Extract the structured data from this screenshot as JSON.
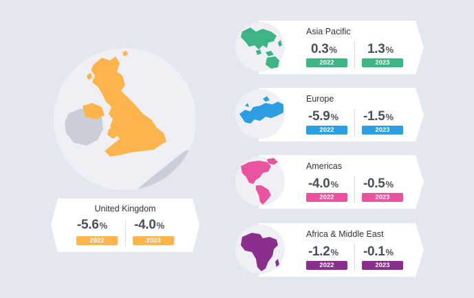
{
  "uk": {
    "title": "United Kingdom",
    "val_2022": "-5.6",
    "val_2023": "-4.0",
    "pct": "%",
    "label_2022": "2022",
    "label_2023": "2023",
    "color": "#fcb54c"
  },
  "regions": [
    {
      "title": "Asia Pacific",
      "val_2022": "0.3",
      "val_2023": "1.3",
      "pct": "%",
      "label_2022": "2022",
      "label_2023": "2023",
      "color": "#3db483",
      "icon": "asia-pacific-map-icon"
    },
    {
      "title": "Europe",
      "val_2022": "-5.9",
      "val_2023": "-1.5",
      "pct": "%",
      "label_2022": "2022",
      "label_2023": "2023",
      "color": "#2b9de0",
      "icon": "europe-map-icon"
    },
    {
      "title": "Americas",
      "val_2022": "-4.0",
      "val_2023": "-0.5",
      "pct": "%",
      "label_2022": "2022",
      "label_2023": "2023",
      "color": "#e8559e",
      "icon": "americas-map-icon"
    },
    {
      "title": "Africa & Middle East",
      "val_2022": "-1.2",
      "val_2023": "-0.1",
      "pct": "%",
      "label_2022": "2022",
      "label_2023": "2023",
      "color": "#8c2f8c",
      "icon": "africa-middle-east-map-icon"
    }
  ]
}
